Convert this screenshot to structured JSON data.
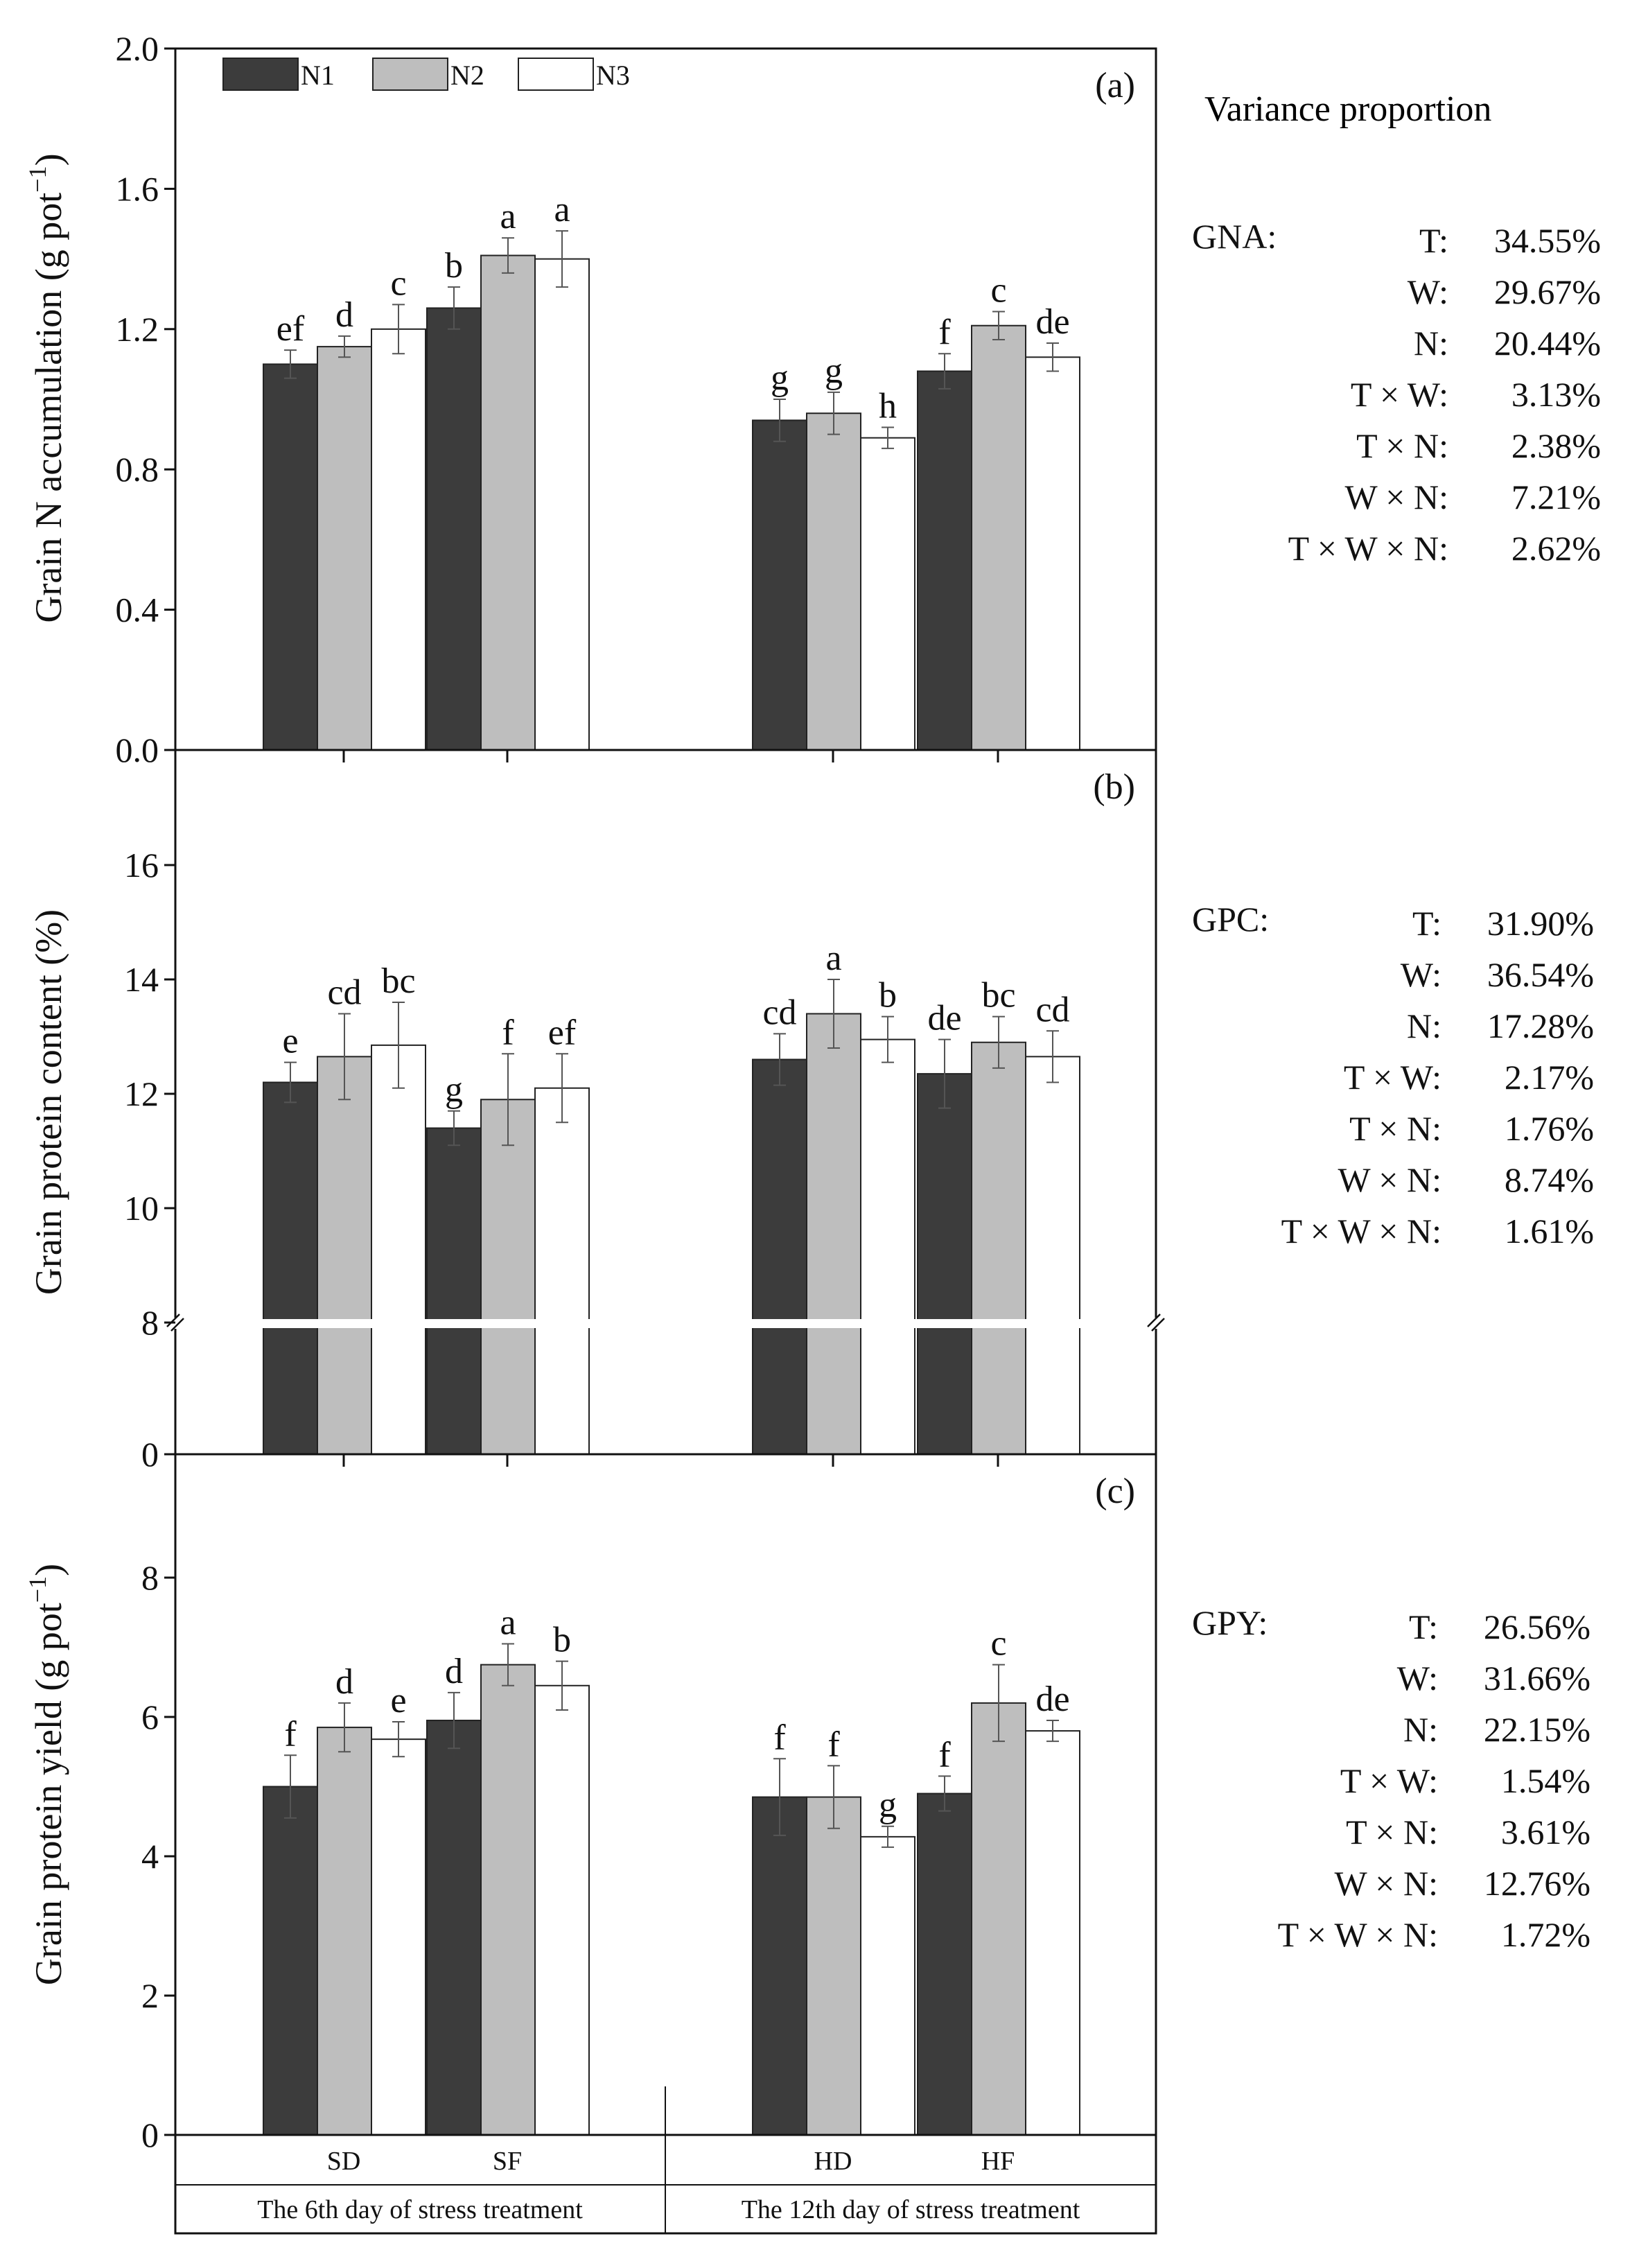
{
  "legend": [
    "N1",
    "N2",
    "N3"
  ],
  "colors": {
    "N1": "#3c3c3c",
    "N2": "#bebebe",
    "N3": "#ffffff"
  },
  "x_axis": {
    "categories": [
      "SD",
      "SF",
      "HD",
      "HF"
    ],
    "groups": [
      "The 6th day of stress treatment",
      "The 12th day of stress treatment"
    ]
  },
  "variance": {
    "title": "Variance proportion",
    "blocks": [
      {
        "label": "GNA:",
        "rows": [
          {
            "term": "T:",
            "value": "34.55%"
          },
          {
            "term": "W:",
            "value": "29.67%"
          },
          {
            "term": "N:",
            "value": "20.44%"
          },
          {
            "term": "T × W:",
            "value": "3.13%"
          },
          {
            "term": "T × N:",
            "value": "2.38%"
          },
          {
            "term": "W × N:",
            "value": "7.21%"
          },
          {
            "term": "T × W × N:",
            "value": "2.62%"
          }
        ]
      },
      {
        "label": "GPC:",
        "rows": [
          {
            "term": "T:",
            "value": "31.90%"
          },
          {
            "term": "W:",
            "value": "36.54%"
          },
          {
            "term": "N:",
            "value": "17.28%"
          },
          {
            "term": "T × W:",
            "value": "2.17%"
          },
          {
            "term": "T × N:",
            "value": "1.76%"
          },
          {
            "term": "W × N:",
            "value": "8.74%"
          },
          {
            "term": "T × W × N:",
            "value": "1.61%"
          }
        ]
      },
      {
        "label": "GPY:",
        "rows": [
          {
            "term": "T:",
            "value": "26.56%"
          },
          {
            "term": "W:",
            "value": "31.66%"
          },
          {
            "term": "N:",
            "value": "22.15%"
          },
          {
            "term": "T × W:",
            "value": "1.54%"
          },
          {
            "term": "T × N:",
            "value": "3.61%"
          },
          {
            "term": "W × N:",
            "value": "12.76%"
          },
          {
            "term": "T × W × N:",
            "value": "1.72%"
          }
        ]
      }
    ]
  },
  "chart_data": [
    {
      "type": "bar",
      "panel": "(a)",
      "ylabel": "Grain N accumulation (g pot",
      "ylabel_sup": "−1",
      "ylabel_end": ")",
      "ylim": [
        0,
        2.0
      ],
      "yticks": [
        0.0,
        0.4,
        0.8,
        1.2,
        1.6,
        2.0
      ],
      "ytick_labels": [
        "0.0",
        "0.4",
        "0.8",
        "1.2",
        "1.6",
        "2.0"
      ],
      "categories": [
        "SD",
        "SF",
        "HD",
        "HF"
      ],
      "series": [
        {
          "name": "N1",
          "values": [
            1.1,
            1.26,
            0.94,
            1.08
          ],
          "errors": [
            0.04,
            0.06,
            0.06,
            0.05
          ],
          "letters": [
            "ef",
            "b",
            "g",
            "f"
          ]
        },
        {
          "name": "N2",
          "values": [
            1.15,
            1.41,
            0.96,
            1.21
          ],
          "errors": [
            0.03,
            0.05,
            0.06,
            0.04
          ],
          "letters": [
            "d",
            "a",
            "g",
            "c"
          ]
        },
        {
          "name": "N3",
          "values": [
            1.2,
            1.4,
            0.89,
            1.12
          ],
          "errors": [
            0.07,
            0.08,
            0.03,
            0.04
          ],
          "letters": [
            "c",
            "a",
            "h",
            "de"
          ]
        }
      ]
    },
    {
      "type": "bar",
      "panel": "(b)",
      "ylabel": "Grain protein content (%)",
      "broken_axis": true,
      "ylim_lower": [
        0,
        8
      ],
      "ylim_upper": [
        8,
        17.5
      ],
      "yticks": [
        0,
        8,
        10,
        12,
        14,
        16
      ],
      "ytick_labels": [
        "0",
        "8",
        "10",
        "12",
        "14",
        "16"
      ],
      "categories": [
        "SD",
        "SF",
        "HD",
        "HF"
      ],
      "series": [
        {
          "name": "N1",
          "values": [
            12.2,
            11.4,
            12.6,
            12.35
          ],
          "errors": [
            0.35,
            0.3,
            0.45,
            0.6
          ],
          "letters": [
            "e",
            "g",
            "cd",
            "de"
          ]
        },
        {
          "name": "N2",
          "values": [
            12.65,
            11.9,
            13.4,
            12.9
          ],
          "errors": [
            0.75,
            0.8,
            0.6,
            0.45
          ],
          "letters": [
            "cd",
            "f",
            "a",
            "bc"
          ]
        },
        {
          "name": "N3",
          "values": [
            12.85,
            12.1,
            12.95,
            12.65
          ],
          "errors": [
            0.75,
            0.6,
            0.4,
            0.45
          ],
          "letters": [
            "bc",
            "ef",
            "b",
            "cd"
          ]
        }
      ]
    },
    {
      "type": "bar",
      "panel": "(c)",
      "ylabel": "Grain protein yield (g pot",
      "ylabel_sup": "−1",
      "ylabel_end": ")",
      "ylim": [
        0,
        9.5
      ],
      "yticks": [
        0,
        2,
        4,
        6,
        8
      ],
      "ytick_labels": [
        "0",
        "2",
        "4",
        "6",
        "8"
      ],
      "categories": [
        "SD",
        "SF",
        "HD",
        "HF"
      ],
      "series": [
        {
          "name": "N1",
          "values": [
            5.0,
            5.95,
            4.85,
            4.9
          ],
          "errors": [
            0.45,
            0.4,
            0.55,
            0.25
          ],
          "letters": [
            "f",
            "d",
            "f",
            "f"
          ]
        },
        {
          "name": "N2",
          "values": [
            5.85,
            6.75,
            4.85,
            6.2
          ],
          "errors": [
            0.35,
            0.3,
            0.45,
            0.55
          ],
          "letters": [
            "d",
            "a",
            "f",
            "c"
          ]
        },
        {
          "name": "N3",
          "values": [
            5.68,
            6.45,
            4.28,
            5.8
          ],
          "errors": [
            0.25,
            0.35,
            0.15,
            0.15
          ],
          "letters": [
            "e",
            "b",
            "g",
            "de"
          ]
        }
      ]
    }
  ]
}
